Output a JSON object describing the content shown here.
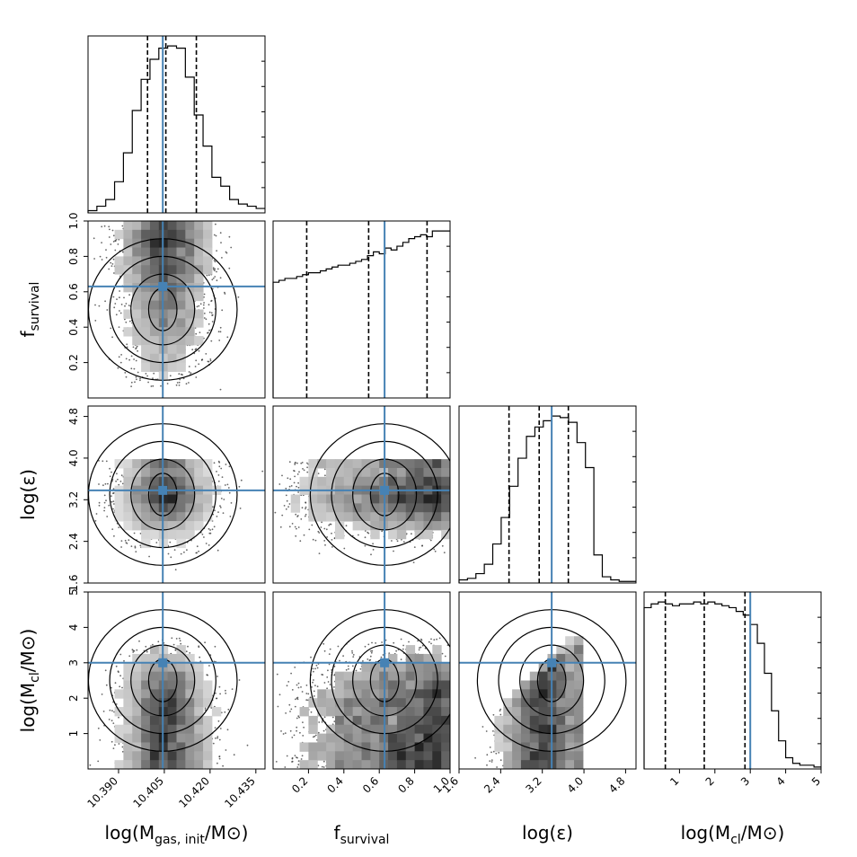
{
  "chart_data": {
    "type": "corner",
    "colors": {
      "truth": "#4682b4",
      "hist": "#000000",
      "density": "#303030"
    },
    "params": [
      {
        "key": "mgas",
        "label": "log(M",
        "sub": "gas, init",
        "tail": "/M",
        "sun": "⊙",
        "close": ")",
        "range": [
          10.38,
          10.438
        ],
        "ticks": [
          10.39,
          10.405,
          10.42,
          10.435
        ],
        "tick_labels": [
          "10.390",
          "10.405",
          "10.420",
          "10.435"
        ],
        "truth": 10.4045,
        "quantiles": [
          10.3995,
          10.4055,
          10.4155
        ],
        "hist": [
          1,
          3,
          6,
          14,
          27,
          46,
          60,
          69,
          74,
          75,
          74,
          61,
          44,
          30,
          16,
          12,
          6,
          4,
          3,
          2
        ]
      },
      {
        "key": "fsurv",
        "label": "f",
        "sub": "survival",
        "tail": "",
        "sun": "",
        "close": "",
        "range": [
          0.0,
          1.0
        ],
        "ticks": [
          0.2,
          0.4,
          0.6,
          0.8,
          1.0
        ],
        "tick_labels": [
          "0.2",
          "0.4",
          "0.6",
          "0.8",
          "1.0"
        ],
        "truth": 0.63,
        "quantiles": [
          0.19,
          0.54,
          0.87
        ],
        "hist": [
          61,
          62,
          63,
          63,
          64,
          65,
          66,
          66,
          67,
          68,
          69,
          70,
          70,
          71,
          72,
          73,
          75,
          77,
          76,
          79,
          78,
          80,
          82,
          84,
          85,
          86,
          85,
          88,
          88,
          88
        ]
      },
      {
        "key": "logeps",
        "label": "log(",
        "sub": "",
        "tail": "ε",
        "sun": "",
        "close": ")",
        "range": [
          1.6,
          5.0
        ],
        "ticks": [
          1.6,
          2.4,
          3.2,
          4.0,
          4.8
        ],
        "tick_labels": [
          "1.6",
          "2.4",
          "3.2",
          "4.0",
          "4.8"
        ],
        "truth": 3.38,
        "quantiles": [
          2.56,
          3.14,
          3.7
        ],
        "hist": [
          2,
          3,
          6,
          12,
          25,
          42,
          62,
          80,
          94,
          100,
          104,
          107,
          106,
          103,
          90,
          74,
          18,
          4,
          2,
          1,
          1
        ]
      },
      {
        "key": "mcl",
        "label": "log(M",
        "sub": "cl",
        "tail": "/M",
        "sun": "⊙",
        "close": ")",
        "range": [
          0.0,
          5.0
        ],
        "ticks": [
          1,
          2,
          3,
          4,
          5
        ],
        "tick_labels": [
          "1",
          "2",
          "3",
          "4",
          "5"
        ],
        "y_ticks": [
          1,
          2,
          3,
          4,
          5
        ],
        "truth": 3.0,
        "quantiles": [
          0.6,
          1.7,
          2.85
        ],
        "hist": [
          86,
          88,
          89,
          88,
          87,
          88,
          88,
          89,
          88,
          89,
          88,
          87,
          86,
          84,
          82,
          77,
          67,
          51,
          31,
          15,
          6,
          3,
          2,
          2,
          1
        ]
      }
    ]
  }
}
